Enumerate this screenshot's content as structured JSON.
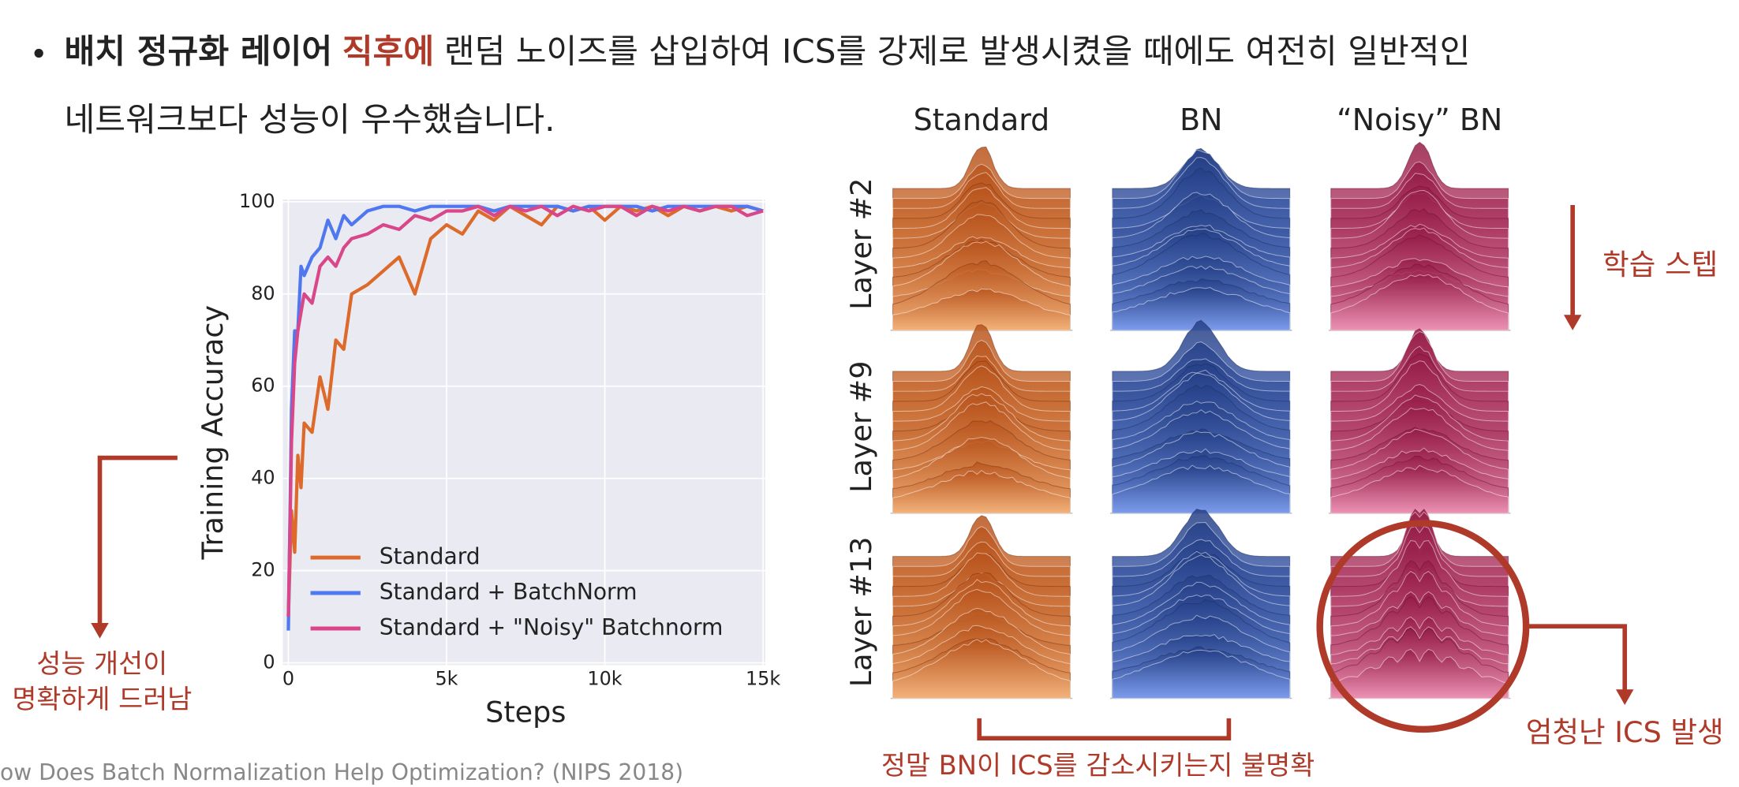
{
  "bullet": {
    "part1": "배치 정규화 레이어",
    "highlight": "직후에",
    "part2": "랜덤 노이즈를 삽입하여 ICS를 강제로 발생시켰을 때에도 여전히 일반적인",
    "line2": "네트워크보다 성능이 우수했습니다."
  },
  "chart_data": {
    "type": "line",
    "x_label": "Steps",
    "y_label": "Training Accuracy",
    "x": [
      0,
      100,
      200,
      300,
      400,
      500,
      750,
      1000,
      1250,
      1500,
      1750,
      2000,
      2500,
      3000,
      3500,
      4000,
      4500,
      5000,
      5500,
      6000,
      6500,
      7000,
      7500,
      8000,
      8500,
      9000,
      9500,
      10000,
      10500,
      11000,
      11500,
      12000,
      12500,
      13000,
      13500,
      14000,
      14500,
      15000
    ],
    "series": [
      {
        "name": "Standard",
        "color": "#dd6a2a",
        "values": [
          10,
          33,
          24,
          45,
          38,
          52,
          50,
          62,
          55,
          70,
          68,
          80,
          82,
          85,
          88,
          80,
          92,
          95,
          93,
          98,
          96,
          99,
          97,
          95,
          99,
          98,
          99,
          96,
          99,
          98,
          99,
          97,
          99,
          98,
          99,
          98,
          99,
          98
        ]
      },
      {
        "name": "Standard + BatchNorm",
        "color": "#4f78f0",
        "values": [
          7,
          55,
          72,
          72,
          86,
          84,
          88,
          90,
          96,
          92,
          97,
          95,
          98,
          99,
          99,
          98,
          99,
          99,
          99,
          99,
          98,
          99,
          99,
          99,
          99,
          98,
          99,
          99,
          99,
          99,
          98,
          99,
          99,
          99,
          99,
          99,
          99,
          98
        ]
      },
      {
        "name": "Standard + \"Noisy\" Batchnorm",
        "color": "#d9478a",
        "values": [
          10,
          48,
          65,
          72,
          76,
          80,
          78,
          86,
          88,
          86,
          90,
          92,
          93,
          95,
          94,
          97,
          96,
          98,
          98,
          99,
          97,
          99,
          98,
          99,
          97,
          99,
          98,
          99,
          99,
          97,
          99,
          98,
          99,
          98,
          99,
          99,
          97,
          98
        ]
      }
    ],
    "xlim": [
      0,
      15000
    ],
    "ylim": [
      0,
      100
    ],
    "xticks": [
      0,
      {
        "value": 5000,
        "label": "5k"
      },
      {
        "value": 10000,
        "label": "10k"
      },
      {
        "value": 15000,
        "label": "15k"
      }
    ],
    "yticks": [
      0,
      20,
      40,
      60,
      80,
      100
    ],
    "grid": true,
    "legend": "lower-left"
  },
  "ridge_figure": {
    "columns": [
      "Standard",
      "BN",
      "“Noisy” BN"
    ],
    "rows": [
      "Layer #2",
      "Layer #9",
      "Layer #13"
    ]
  },
  "annotations": {
    "train_step": "학습 스텝",
    "improve_1": "성능 개선이",
    "improve_2": "명확하게 드러남",
    "ics": "엄청난 ICS 발생",
    "unclear": "정말 BN이 ICS를 감소시키는지 불명확"
  },
  "citation": "ow Does Batch Normalization Help Optimization? (NIPS 2018)"
}
